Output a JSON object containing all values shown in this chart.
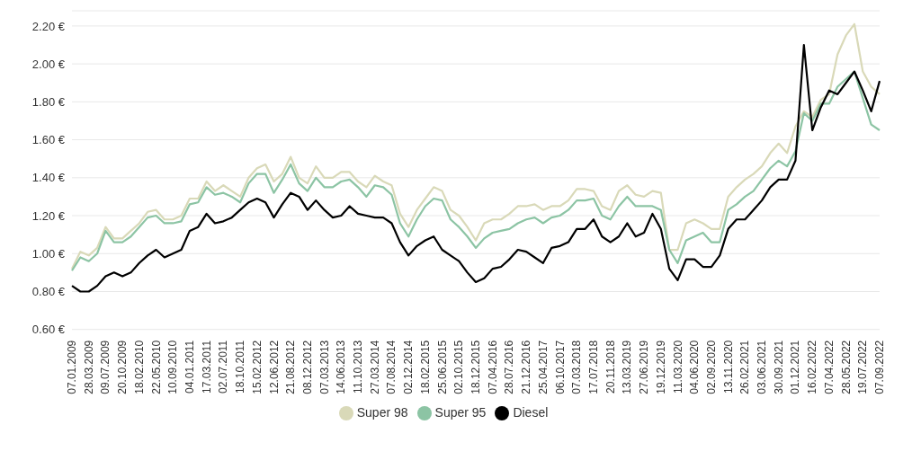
{
  "chart_data": {
    "type": "line",
    "categories": [
      "07.01.2009",
      null,
      "28.03.2009",
      null,
      "09.07.2009",
      null,
      "20.10.2009",
      null,
      "18.02.2010",
      null,
      "22.05.2010",
      null,
      "10.09.2010",
      null,
      "04.01.2011",
      null,
      "17.03.2011",
      null,
      "02.07.2011",
      null,
      "18.10.2011",
      null,
      "15.02.2012",
      null,
      "12.06.2012",
      null,
      "21.08.2012",
      null,
      "08.12.2012",
      null,
      "07.03.2013",
      null,
      "14.06.2013",
      null,
      "11.10.2013",
      null,
      "27.03.2014",
      null,
      "07.08.2014",
      null,
      "02.12.2014",
      null,
      "18.02.2015",
      null,
      "25.06.2015",
      null,
      "02.10.2015",
      null,
      "18.12.2015",
      null,
      "07.04.2016",
      null,
      "28.07.2016",
      null,
      "21.12.2016",
      null,
      "25.04.2017",
      null,
      "06.10.2017",
      null,
      "07.03.2018",
      null,
      "17.07.2018",
      null,
      "20.11.2018",
      null,
      "13.03.2019",
      null,
      "27.06.2019",
      null,
      "19.12.2019",
      null,
      "11.03.2020",
      null,
      "04.06.2020",
      null,
      "02.09.2020",
      null,
      "13.11.2020",
      null,
      "26.02.2021",
      null,
      "03.06.2021",
      null,
      "30.09.2021",
      null,
      "01.12.2021",
      null,
      "16.02.2022",
      null,
      "07.04.2022",
      null,
      "28.05.2022",
      null,
      "19.07.2022",
      null,
      "07.09.2022"
    ],
    "series": [
      {
        "name": "Super 98",
        "color": "#d9d9b8",
        "values": [
          0.92,
          1.01,
          0.99,
          1.03,
          1.14,
          1.08,
          1.08,
          1.12,
          1.16,
          1.22,
          1.23,
          1.18,
          1.18,
          1.2,
          1.29,
          1.29,
          1.38,
          1.33,
          1.36,
          1.33,
          1.3,
          1.4,
          1.45,
          1.47,
          1.38,
          1.42,
          1.51,
          1.4,
          1.37,
          1.46,
          1.4,
          1.4,
          1.43,
          1.43,
          1.38,
          1.35,
          1.41,
          1.38,
          1.36,
          1.21,
          1.14,
          1.23,
          1.29,
          1.35,
          1.33,
          1.23,
          1.2,
          1.14,
          1.07,
          1.16,
          1.18,
          1.18,
          1.21,
          1.25,
          1.25,
          1.26,
          1.23,
          1.25,
          1.25,
          1.28,
          1.34,
          1.34,
          1.33,
          1.25,
          1.23,
          1.33,
          1.36,
          1.31,
          1.3,
          1.33,
          1.32,
          1.02,
          1.02,
          1.16,
          1.18,
          1.16,
          1.13,
          1.13,
          1.3,
          1.35,
          1.39,
          1.42,
          1.46,
          1.53,
          1.58,
          1.53,
          1.67,
          1.75,
          1.72,
          1.81,
          1.84,
          2.05,
          2.15,
          2.21,
          1.96,
          1.88,
          1.84
        ]
      },
      {
        "name": "Super 95",
        "color": "#8cc4a4",
        "values": [
          0.91,
          0.98,
          0.96,
          1.0,
          1.12,
          1.06,
          1.06,
          1.09,
          1.14,
          1.19,
          1.2,
          1.16,
          1.16,
          1.17,
          1.26,
          1.27,
          1.35,
          1.31,
          1.32,
          1.3,
          1.27,
          1.37,
          1.42,
          1.42,
          1.32,
          1.39,
          1.47,
          1.37,
          1.33,
          1.4,
          1.35,
          1.35,
          1.38,
          1.39,
          1.35,
          1.3,
          1.36,
          1.35,
          1.31,
          1.16,
          1.09,
          1.18,
          1.25,
          1.29,
          1.28,
          1.18,
          1.14,
          1.09,
          1.03,
          1.08,
          1.11,
          1.12,
          1.13,
          1.16,
          1.18,
          1.19,
          1.16,
          1.19,
          1.2,
          1.23,
          1.28,
          1.28,
          1.29,
          1.2,
          1.18,
          1.25,
          1.3,
          1.25,
          1.25,
          1.25,
          1.23,
          1.02,
          0.95,
          1.07,
          1.09,
          1.11,
          1.06,
          1.06,
          1.23,
          1.26,
          1.3,
          1.33,
          1.39,
          1.45,
          1.49,
          1.46,
          1.54,
          1.74,
          1.7,
          1.79,
          1.79,
          1.88,
          1.92,
          1.96,
          1.82,
          1.68,
          1.65
        ]
      },
      {
        "name": "Diesel",
        "color": "#000000",
        "values": [
          0.83,
          0.8,
          0.8,
          0.83,
          0.88,
          0.9,
          0.88,
          0.9,
          0.95,
          0.99,
          1.02,
          0.98,
          1.0,
          1.02,
          1.12,
          1.14,
          1.21,
          1.16,
          1.17,
          1.19,
          1.23,
          1.27,
          1.29,
          1.27,
          1.19,
          1.26,
          1.32,
          1.3,
          1.23,
          1.28,
          1.23,
          1.19,
          1.2,
          1.25,
          1.21,
          1.2,
          1.19,
          1.19,
          1.16,
          1.06,
          0.99,
          1.04,
          1.07,
          1.09,
          1.02,
          0.99,
          0.96,
          0.9,
          0.85,
          0.87,
          0.92,
          0.93,
          0.97,
          1.02,
          1.01,
          0.98,
          0.95,
          1.03,
          1.04,
          1.06,
          1.13,
          1.13,
          1.18,
          1.09,
          1.06,
          1.09,
          1.16,
          1.09,
          1.11,
          1.21,
          1.13,
          0.92,
          0.86,
          0.97,
          0.97,
          0.93,
          0.93,
          0.99,
          1.13,
          1.18,
          1.18,
          1.23,
          1.28,
          1.35,
          1.39,
          1.39,
          1.49,
          2.1,
          1.65,
          1.77,
          1.86,
          1.84,
          1.9,
          1.96,
          1.86,
          1.75,
          1.91
        ]
      }
    ],
    "ylim": [
      0.6,
      2.28
    ],
    "yticks": [
      {
        "value": 0.6,
        "label": "0.60 €"
      },
      {
        "value": 0.8,
        "label": "0.80 €"
      },
      {
        "value": 1.0,
        "label": "1.00 €"
      },
      {
        "value": 1.2,
        "label": "1.20 €"
      },
      {
        "value": 1.4,
        "label": "1.40 €"
      },
      {
        "value": 1.6,
        "label": "1.60 €"
      },
      {
        "value": 1.8,
        "label": "1.80 €"
      },
      {
        "value": 2.0,
        "label": "2.00 €"
      },
      {
        "value": 2.2,
        "label": "2.20 €"
      }
    ],
    "grid": "y",
    "legend": "bottom",
    "marker": "none",
    "line_style": "solid"
  }
}
